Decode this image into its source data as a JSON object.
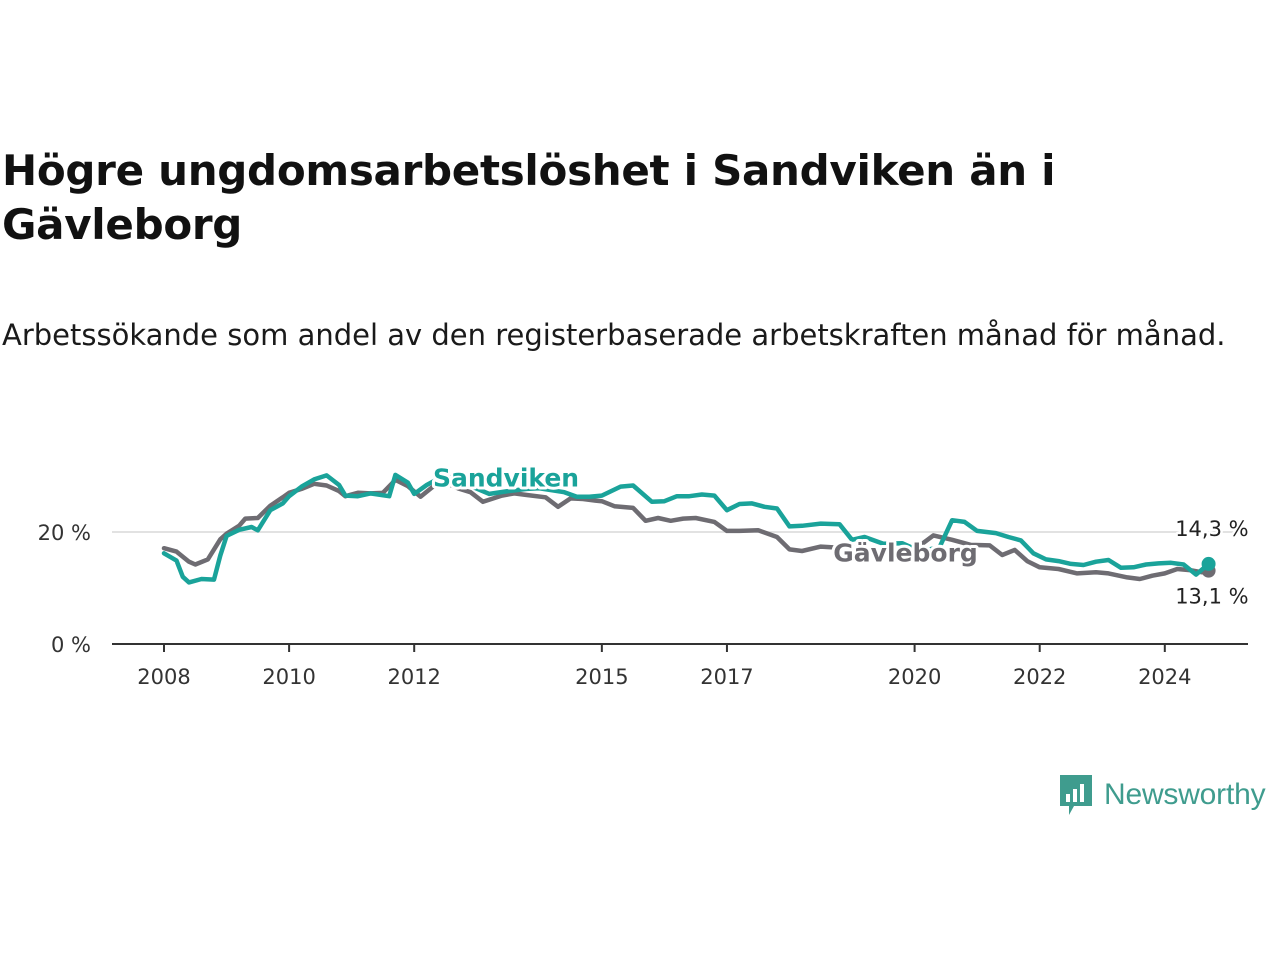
{
  "title": "Högre ungdomsarbetslöshet i Sandviken än i Gävleborg",
  "subtitle": "Arbetssökande som andel av den registerbaserade arbetskraften månad för månad.",
  "brand": {
    "name": "Newsworthy",
    "icon": "newsworthy-logo-icon",
    "color": "#3f9c8e"
  },
  "chart_data": {
    "type": "line",
    "x_unit": "year",
    "ylim": [
      0,
      30
    ],
    "grid": true,
    "y_ticks": [
      {
        "value": 0,
        "label": "0 %"
      },
      {
        "value": 20,
        "label": "20 %"
      }
    ],
    "x_ticks": [
      {
        "value": 2008,
        "label": "2008"
      },
      {
        "value": 2010,
        "label": "2010"
      },
      {
        "value": 2012,
        "label": "2012"
      },
      {
        "value": 2015,
        "label": "2015"
      },
      {
        "value": 2017,
        "label": "2017"
      },
      {
        "value": 2020,
        "label": "2020"
      },
      {
        "value": 2022,
        "label": "2022"
      },
      {
        "value": 2024,
        "label": "2024"
      }
    ],
    "series": [
      {
        "name": "Gävleborg",
        "color": "#6e6c72",
        "end_label": "13,1 %",
        "label_x": 2018.7,
        "label_y": 14.7,
        "points": [
          [
            2008.0,
            17.1
          ],
          [
            2008.2,
            16.5
          ],
          [
            2008.4,
            14.7
          ],
          [
            2008.5,
            14.2
          ],
          [
            2008.7,
            15.1
          ],
          [
            2008.9,
            18.7
          ],
          [
            2009.0,
            19.7
          ],
          [
            2009.2,
            21.1
          ],
          [
            2009.3,
            22.4
          ],
          [
            2009.5,
            22.5
          ],
          [
            2009.7,
            24.7
          ],
          [
            2009.9,
            26.2
          ],
          [
            2010.0,
            27.0
          ],
          [
            2010.2,
            27.7
          ],
          [
            2010.4,
            28.6
          ],
          [
            2010.6,
            28.3
          ],
          [
            2010.8,
            27.3
          ],
          [
            2010.9,
            26.4
          ],
          [
            2011.1,
            27.0
          ],
          [
            2011.3,
            26.9
          ],
          [
            2011.5,
            27.0
          ],
          [
            2011.7,
            29.3
          ],
          [
            2011.9,
            28.2
          ],
          [
            2012.1,
            26.3
          ],
          [
            2012.3,
            28.1
          ],
          [
            2012.5,
            28.8
          ],
          [
            2012.7,
            27.8
          ],
          [
            2012.9,
            27.1
          ],
          [
            2013.1,
            25.4
          ],
          [
            2013.4,
            26.5
          ],
          [
            2013.6,
            26.9
          ],
          [
            2013.8,
            26.6
          ],
          [
            2014.1,
            26.2
          ],
          [
            2014.3,
            24.5
          ],
          [
            2014.5,
            26.0
          ],
          [
            2014.7,
            25.9
          ],
          [
            2014.9,
            25.6
          ],
          [
            2015.0,
            25.5
          ],
          [
            2015.2,
            24.6
          ],
          [
            2015.5,
            24.3
          ],
          [
            2015.7,
            22.0
          ],
          [
            2015.9,
            22.5
          ],
          [
            2016.1,
            22.0
          ],
          [
            2016.3,
            22.4
          ],
          [
            2016.5,
            22.5
          ],
          [
            2016.8,
            21.8
          ],
          [
            2017.0,
            20.2
          ],
          [
            2017.2,
            20.2
          ],
          [
            2017.5,
            20.3
          ],
          [
            2017.8,
            19.1
          ],
          [
            2018.0,
            16.9
          ],
          [
            2018.2,
            16.6
          ],
          [
            2018.5,
            17.4
          ],
          [
            2018.8,
            17.2
          ],
          [
            2019.1,
            17.1
          ],
          [
            2019.4,
            16.6
          ],
          [
            2019.7,
            15.8
          ],
          [
            2020.0,
            16.9
          ],
          [
            2020.3,
            19.4
          ],
          [
            2020.6,
            18.6
          ],
          [
            2020.9,
            17.7
          ],
          [
            2021.2,
            17.6
          ],
          [
            2021.4,
            15.9
          ],
          [
            2021.6,
            16.8
          ],
          [
            2021.8,
            14.8
          ],
          [
            2022.0,
            13.7
          ],
          [
            2022.3,
            13.4
          ],
          [
            2022.6,
            12.6
          ],
          [
            2022.9,
            12.8
          ],
          [
            2023.1,
            12.6
          ],
          [
            2023.4,
            11.9
          ],
          [
            2023.6,
            11.6
          ],
          [
            2023.8,
            12.2
          ],
          [
            2024.0,
            12.6
          ],
          [
            2024.2,
            13.4
          ],
          [
            2024.4,
            13.2
          ],
          [
            2024.6,
            12.8
          ],
          [
            2024.7,
            13.1
          ]
        ]
      },
      {
        "name": "Sandviken",
        "color": "#1aa39a",
        "end_label": "14,3 %",
        "label_x": 2012.3,
        "label_y": 28.1,
        "points": [
          [
            2008.0,
            16.2
          ],
          [
            2008.2,
            14.9
          ],
          [
            2008.3,
            12.0
          ],
          [
            2008.4,
            11.0
          ],
          [
            2008.6,
            11.6
          ],
          [
            2008.8,
            11.5
          ],
          [
            2008.9,
            15.8
          ],
          [
            2009.0,
            19.3
          ],
          [
            2009.2,
            20.4
          ],
          [
            2009.4,
            20.9
          ],
          [
            2009.5,
            20.3
          ],
          [
            2009.7,
            23.9
          ],
          [
            2009.9,
            25.1
          ],
          [
            2010.0,
            26.4
          ],
          [
            2010.2,
            28.1
          ],
          [
            2010.4,
            29.4
          ],
          [
            2010.6,
            30.1
          ],
          [
            2010.8,
            28.4
          ],
          [
            2010.9,
            26.5
          ],
          [
            2011.1,
            26.4
          ],
          [
            2011.3,
            26.9
          ],
          [
            2011.6,
            26.4
          ],
          [
            2011.7,
            30.2
          ],
          [
            2011.9,
            28.8
          ],
          [
            2012.0,
            26.8
          ],
          [
            2012.2,
            28.4
          ],
          [
            2012.4,
            29.6
          ],
          [
            2012.6,
            30.3
          ],
          [
            2012.8,
            28.7
          ],
          [
            2013.2,
            26.8
          ],
          [
            2013.5,
            27.3
          ],
          [
            2013.8,
            27.7
          ],
          [
            2014.0,
            27.8
          ],
          [
            2014.4,
            27.1
          ],
          [
            2014.6,
            26.3
          ],
          [
            2014.8,
            26.3
          ],
          [
            2015.0,
            26.5
          ],
          [
            2015.3,
            28.1
          ],
          [
            2015.5,
            28.3
          ],
          [
            2015.8,
            25.4
          ],
          [
            2016.0,
            25.5
          ],
          [
            2016.2,
            26.4
          ],
          [
            2016.4,
            26.4
          ],
          [
            2016.6,
            26.7
          ],
          [
            2016.8,
            26.5
          ],
          [
            2017.0,
            23.9
          ],
          [
            2017.2,
            25.0
          ],
          [
            2017.4,
            25.1
          ],
          [
            2017.6,
            24.5
          ],
          [
            2017.8,
            24.2
          ],
          [
            2018.0,
            21.0
          ],
          [
            2018.2,
            21.1
          ],
          [
            2018.5,
            21.5
          ],
          [
            2018.8,
            21.4
          ],
          [
            2019.0,
            18.6
          ],
          [
            2019.2,
            19.1
          ],
          [
            2019.5,
            17.9
          ],
          [
            2019.8,
            18.0
          ],
          [
            2020.0,
            17.0
          ],
          [
            2020.2,
            16.8
          ],
          [
            2020.4,
            17.3
          ],
          [
            2020.6,
            22.1
          ],
          [
            2020.8,
            21.8
          ],
          [
            2021.0,
            20.2
          ],
          [
            2021.3,
            19.8
          ],
          [
            2021.5,
            19.1
          ],
          [
            2021.7,
            18.5
          ],
          [
            2021.9,
            16.2
          ],
          [
            2022.1,
            15.1
          ],
          [
            2022.3,
            14.8
          ],
          [
            2022.5,
            14.3
          ],
          [
            2022.7,
            14.1
          ],
          [
            2022.9,
            14.7
          ],
          [
            2023.1,
            15.0
          ],
          [
            2023.3,
            13.6
          ],
          [
            2023.5,
            13.7
          ],
          [
            2023.7,
            14.2
          ],
          [
            2023.9,
            14.4
          ],
          [
            2024.1,
            14.5
          ],
          [
            2024.3,
            14.2
          ],
          [
            2024.5,
            12.4
          ],
          [
            2024.7,
            14.3
          ]
        ]
      }
    ]
  }
}
